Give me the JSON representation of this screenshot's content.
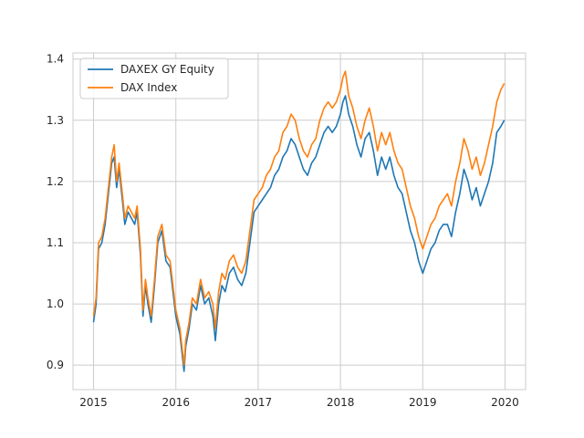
{
  "chart_data": {
    "type": "line",
    "title": "",
    "xlabel": "",
    "ylabel": "",
    "xlim": [
      2014.75,
      2020.25
    ],
    "ylim": [
      0.86,
      1.41
    ],
    "xticks": [
      2015,
      2016,
      2017,
      2018,
      2019,
      2020
    ],
    "xtick_labels": [
      "2015",
      "2016",
      "2017",
      "2018",
      "2019",
      "2020"
    ],
    "yticks": [
      0.9,
      1.0,
      1.1,
      1.2,
      1.3,
      1.4
    ],
    "ytick_labels": [
      "0.9",
      "1.0",
      "1.1",
      "1.2",
      "1.3",
      "1.4"
    ],
    "grid": true,
    "legend_position": "top-left",
    "series": [
      {
        "name": "DAXEX GY Equity",
        "color": "#1f77b4",
        "x": [
          2015.0,
          2015.03,
          2015.06,
          2015.1,
          2015.14,
          2015.18,
          2015.22,
          2015.25,
          2015.28,
          2015.31,
          2015.35,
          2015.38,
          2015.42,
          2015.46,
          2015.5,
          2015.53,
          2015.57,
          2015.6,
          2015.63,
          2015.66,
          2015.7,
          2015.74,
          2015.78,
          2015.83,
          2015.88,
          2015.93,
          2016.0,
          2016.05,
          2016.1,
          2016.12,
          2016.16,
          2016.2,
          2016.25,
          2016.3,
          2016.35,
          2016.4,
          2016.45,
          2016.48,
          2016.52,
          2016.56,
          2016.6,
          2016.65,
          2016.7,
          2016.75,
          2016.8,
          2016.85,
          2016.9,
          2016.95,
          2017.0,
          2017.05,
          2017.1,
          2017.15,
          2017.2,
          2017.25,
          2017.3,
          2017.35,
          2017.4,
          2017.45,
          2017.5,
          2017.55,
          2017.6,
          2017.65,
          2017.7,
          2017.75,
          2017.8,
          2017.85,
          2017.9,
          2017.95,
          2018.0,
          2018.03,
          2018.06,
          2018.1,
          2018.15,
          2018.2,
          2018.25,
          2018.3,
          2018.35,
          2018.4,
          2018.45,
          2018.5,
          2018.55,
          2018.6,
          2018.65,
          2018.7,
          2018.75,
          2018.8,
          2018.85,
          2018.9,
          2018.95,
          2019.0,
          2019.05,
          2019.1,
          2019.15,
          2019.2,
          2019.25,
          2019.3,
          2019.35,
          2019.4,
          2019.45,
          2019.5,
          2019.55,
          2019.6,
          2019.65,
          2019.7,
          2019.75,
          2019.8,
          2019.85,
          2019.9,
          2019.95,
          2019.99
        ],
        "values": [
          0.97,
          1.0,
          1.09,
          1.1,
          1.13,
          1.18,
          1.23,
          1.24,
          1.19,
          1.22,
          1.17,
          1.13,
          1.15,
          1.14,
          1.13,
          1.15,
          1.08,
          0.98,
          1.03,
          1.0,
          0.97,
          1.03,
          1.1,
          1.12,
          1.07,
          1.06,
          0.98,
          0.95,
          0.89,
          0.93,
          0.96,
          1.0,
          0.99,
          1.03,
          1.0,
          1.01,
          0.98,
          0.94,
          1.0,
          1.03,
          1.02,
          1.05,
          1.06,
          1.04,
          1.03,
          1.05,
          1.1,
          1.15,
          1.16,
          1.17,
          1.18,
          1.19,
          1.21,
          1.22,
          1.24,
          1.25,
          1.27,
          1.26,
          1.24,
          1.22,
          1.21,
          1.23,
          1.24,
          1.26,
          1.28,
          1.29,
          1.28,
          1.29,
          1.31,
          1.33,
          1.34,
          1.31,
          1.29,
          1.26,
          1.24,
          1.27,
          1.28,
          1.25,
          1.21,
          1.24,
          1.22,
          1.24,
          1.21,
          1.19,
          1.18,
          1.15,
          1.12,
          1.1,
          1.07,
          1.05,
          1.07,
          1.09,
          1.1,
          1.12,
          1.13,
          1.13,
          1.11,
          1.15,
          1.18,
          1.22,
          1.2,
          1.17,
          1.19,
          1.16,
          1.18,
          1.2,
          1.23,
          1.28,
          1.29,
          1.3
        ]
      },
      {
        "name": "DAX Index",
        "color": "#ff7f0e",
        "x": [
          2015.0,
          2015.03,
          2015.06,
          2015.1,
          2015.14,
          2015.18,
          2015.22,
          2015.25,
          2015.28,
          2015.31,
          2015.35,
          2015.38,
          2015.42,
          2015.46,
          2015.5,
          2015.53,
          2015.57,
          2015.6,
          2015.63,
          2015.66,
          2015.7,
          2015.74,
          2015.78,
          2015.83,
          2015.88,
          2015.93,
          2016.0,
          2016.05,
          2016.1,
          2016.12,
          2016.16,
          2016.2,
          2016.25,
          2016.3,
          2016.35,
          2016.4,
          2016.45,
          2016.48,
          2016.52,
          2016.56,
          2016.6,
          2016.65,
          2016.7,
          2016.75,
          2016.8,
          2016.85,
          2016.9,
          2016.95,
          2017.0,
          2017.05,
          2017.1,
          2017.15,
          2017.2,
          2017.25,
          2017.3,
          2017.35,
          2017.4,
          2017.45,
          2017.5,
          2017.55,
          2017.6,
          2017.65,
          2017.7,
          2017.75,
          2017.8,
          2017.85,
          2017.9,
          2017.95,
          2018.0,
          2018.03,
          2018.06,
          2018.1,
          2018.15,
          2018.2,
          2018.25,
          2018.3,
          2018.35,
          2018.4,
          2018.45,
          2018.5,
          2018.55,
          2018.6,
          2018.65,
          2018.7,
          2018.75,
          2018.8,
          2018.85,
          2018.9,
          2018.95,
          2019.0,
          2019.05,
          2019.1,
          2019.15,
          2019.2,
          2019.25,
          2019.3,
          2019.35,
          2019.4,
          2019.45,
          2019.5,
          2019.55,
          2019.6,
          2019.65,
          2019.7,
          2019.75,
          2019.8,
          2019.85,
          2019.9,
          2019.95,
          2019.99
        ],
        "values": [
          0.98,
          1.01,
          1.1,
          1.11,
          1.14,
          1.19,
          1.24,
          1.26,
          1.2,
          1.23,
          1.18,
          1.14,
          1.16,
          1.15,
          1.14,
          1.16,
          1.09,
          0.99,
          1.04,
          1.01,
          0.98,
          1.04,
          1.11,
          1.13,
          1.08,
          1.07,
          0.99,
          0.96,
          0.9,
          0.94,
          0.97,
          1.01,
          1.0,
          1.04,
          1.01,
          1.02,
          1.0,
          0.96,
          1.02,
          1.05,
          1.04,
          1.07,
          1.08,
          1.06,
          1.05,
          1.07,
          1.12,
          1.17,
          1.18,
          1.19,
          1.21,
          1.22,
          1.24,
          1.25,
          1.28,
          1.29,
          1.31,
          1.3,
          1.27,
          1.25,
          1.24,
          1.26,
          1.27,
          1.3,
          1.32,
          1.33,
          1.32,
          1.33,
          1.35,
          1.37,
          1.38,
          1.34,
          1.32,
          1.29,
          1.27,
          1.3,
          1.32,
          1.29,
          1.25,
          1.28,
          1.26,
          1.28,
          1.25,
          1.23,
          1.22,
          1.19,
          1.16,
          1.14,
          1.11,
          1.09,
          1.11,
          1.13,
          1.14,
          1.16,
          1.17,
          1.18,
          1.16,
          1.2,
          1.23,
          1.27,
          1.25,
          1.22,
          1.24,
          1.21,
          1.23,
          1.26,
          1.29,
          1.33,
          1.35,
          1.36
        ]
      }
    ]
  }
}
